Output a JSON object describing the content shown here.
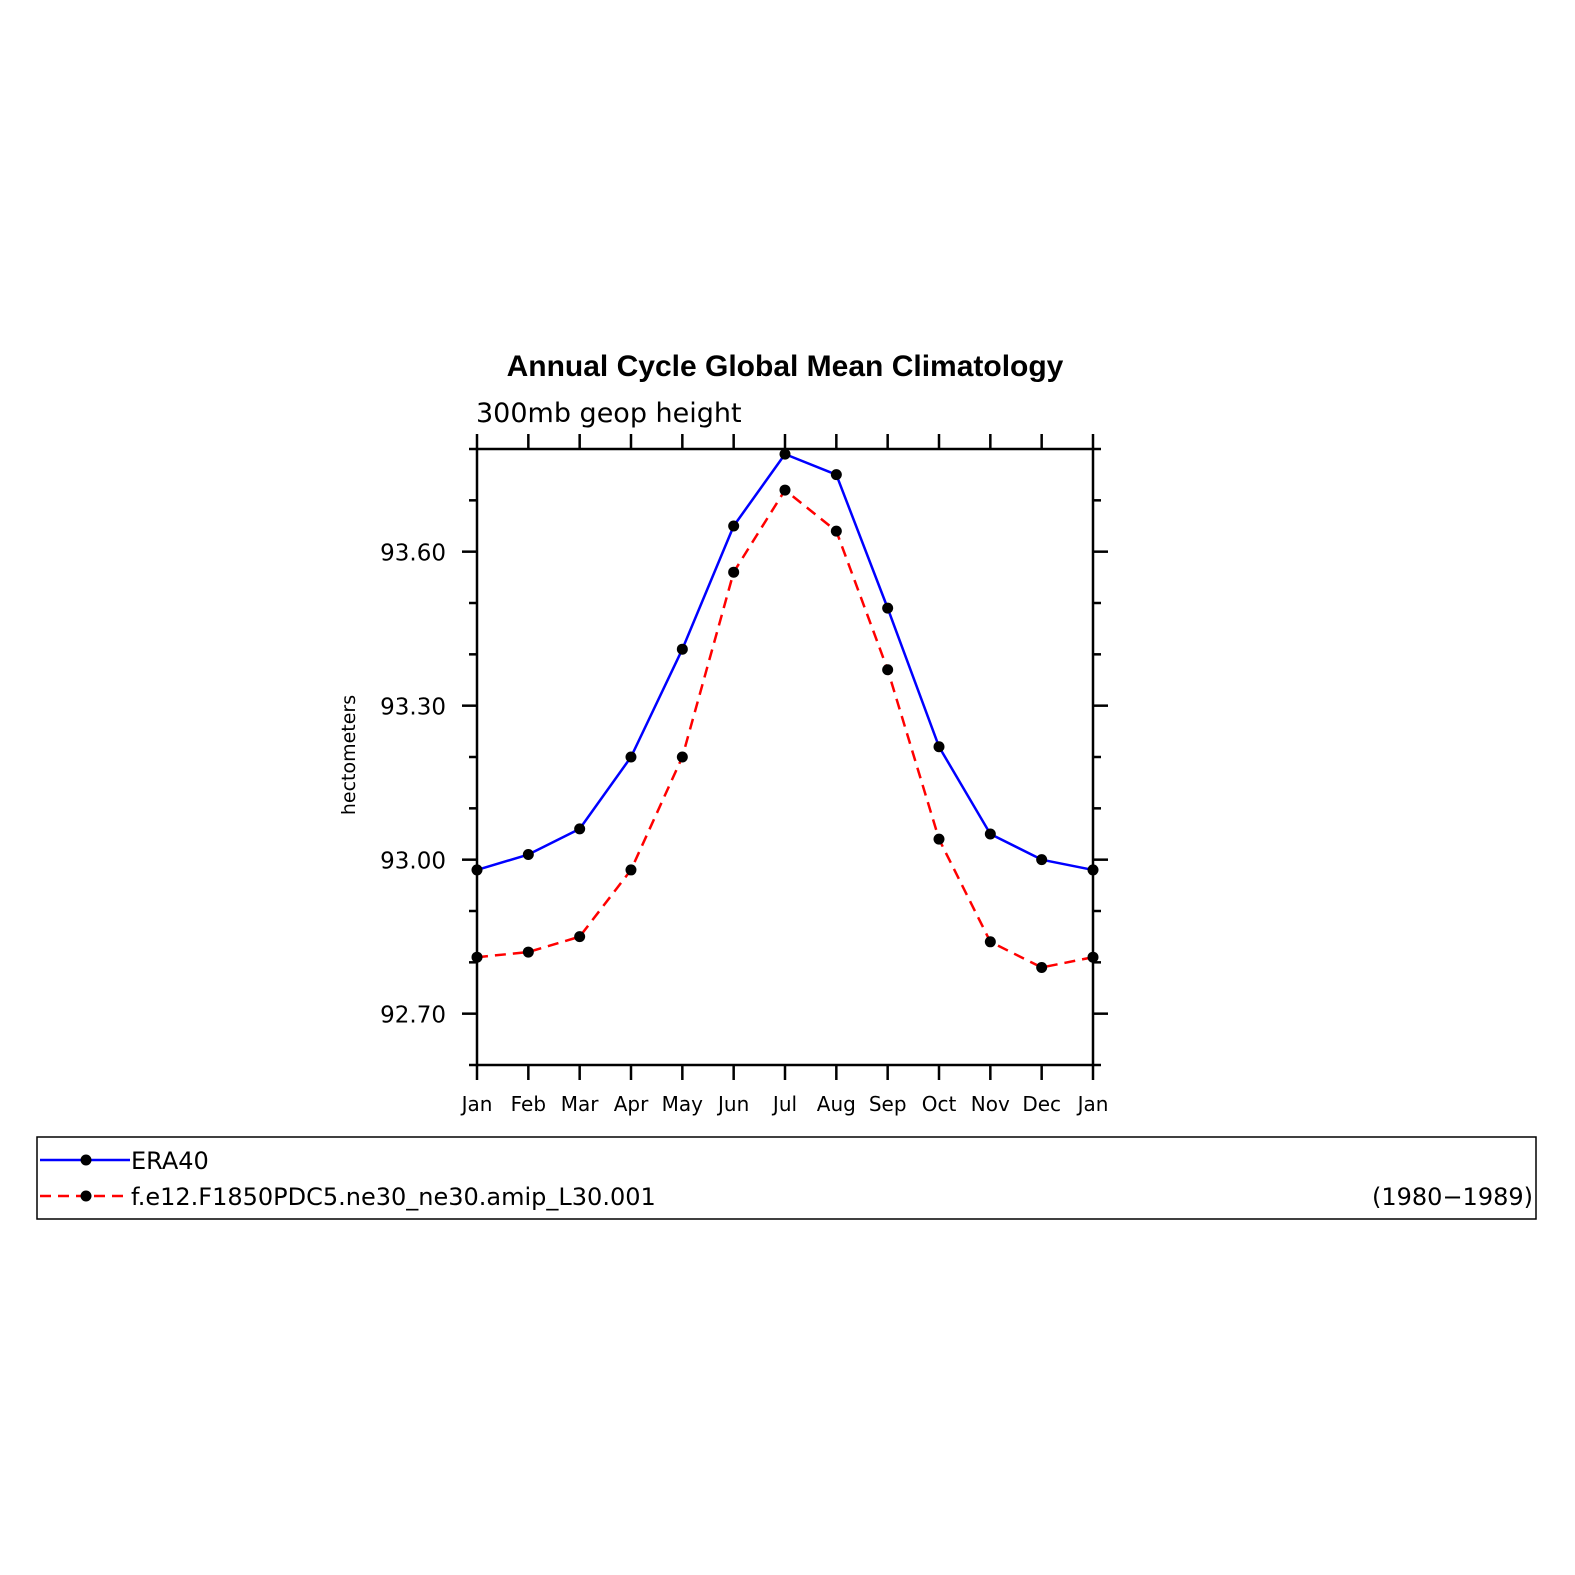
{
  "chart_data": {
    "type": "line",
    "title": "Annual Cycle Global Mean Climatology",
    "subtitle": "300mb geop height",
    "ylabel": "hectometers",
    "xlabel": "",
    "categories": [
      "Jan",
      "Feb",
      "Mar",
      "Apr",
      "May",
      "Jun",
      "Jul",
      "Aug",
      "Sep",
      "Oct",
      "Nov",
      "Dec",
      "Jan"
    ],
    "ylim": [
      92.6,
      93.8
    ],
    "yticks": [
      92.7,
      93.0,
      93.3,
      93.6
    ],
    "ytick_labels": [
      "92.70",
      "93.00",
      "93.30",
      "93.60"
    ],
    "series": [
      {
        "name": "ERA40",
        "color": "#0000ff",
        "dash": "solid",
        "marker": "dot",
        "values": [
          92.98,
          93.01,
          93.06,
          93.2,
          93.41,
          93.65,
          93.79,
          93.75,
          93.49,
          93.22,
          93.05,
          93.0,
          92.98
        ]
      },
      {
        "name": "f.e12.F1850PDC5.ne30_ne30.amip_L30.001",
        "color": "#ff0000",
        "dash": "dashed",
        "marker": "dot",
        "values": [
          92.81,
          92.82,
          92.85,
          92.98,
          93.2,
          93.56,
          93.72,
          93.64,
          93.37,
          93.04,
          92.84,
          92.79,
          92.81
        ]
      }
    ],
    "legend": {
      "position": "bottom",
      "note": "(1980−1989)"
    },
    "grid": false
  }
}
